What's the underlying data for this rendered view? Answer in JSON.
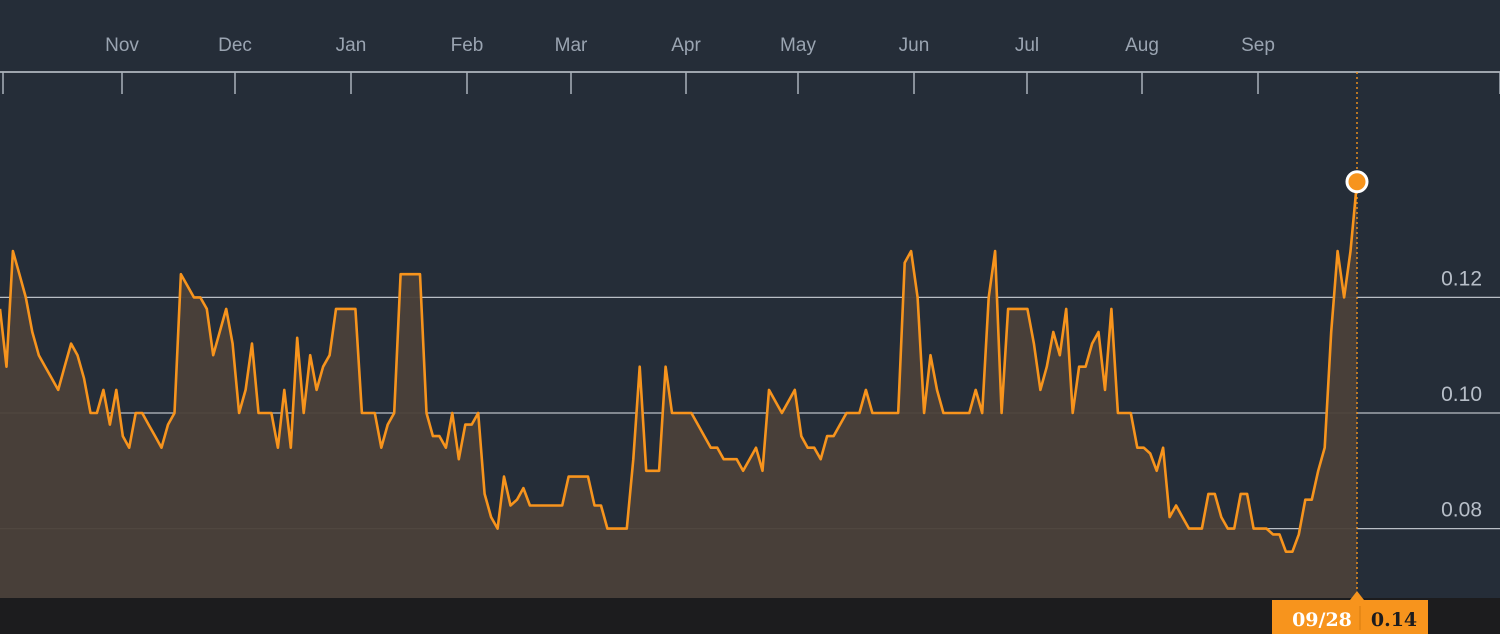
{
  "chart_data": {
    "type": "area",
    "title": "",
    "xlabel": "",
    "ylabel": "",
    "x_axis_position": "top",
    "y_axis_position": "right",
    "months": [
      "Nov",
      "Dec",
      "Jan",
      "Feb",
      "Mar",
      "Apr",
      "May",
      "Jun",
      "Jul",
      "Aug",
      "Sep"
    ],
    "y_ticks": [
      0.08,
      0.1,
      0.12
    ],
    "y_tick_labels": [
      "0.08",
      "0.10",
      "0.12"
    ],
    "ylim": [
      0.068,
      0.155
    ],
    "grid": true,
    "series": [
      {
        "values": [
          0.118,
          0.108,
          0.128,
          0.124,
          0.12,
          0.114,
          0.11,
          0.108,
          0.106,
          0.104,
          0.108,
          0.112,
          0.11,
          0.106,
          0.1,
          0.1,
          0.104,
          0.098,
          0.104,
          0.096,
          0.094,
          0.1,
          0.1,
          0.098,
          0.096,
          0.094,
          0.098,
          0.1,
          0.124,
          0.122,
          0.12,
          0.12,
          0.118,
          0.11,
          0.114,
          0.118,
          0.112,
          0.1,
          0.104,
          0.112,
          0.1,
          0.1,
          0.1,
          0.094,
          0.104,
          0.094,
          0.113,
          0.1,
          0.11,
          0.104,
          0.108,
          0.11,
          0.118,
          0.118,
          0.118,
          0.118,
          0.1,
          0.1,
          0.1,
          0.094,
          0.098,
          0.1,
          0.124,
          0.124,
          0.124,
          0.124,
          0.1,
          0.096,
          0.096,
          0.094,
          0.1,
          0.092,
          0.098,
          0.098,
          0.1,
          0.086,
          0.082,
          0.08,
          0.089,
          0.084,
          0.085,
          0.087,
          0.084,
          0.084,
          0.084,
          0.084,
          0.084,
          0.084,
          0.089,
          0.089,
          0.089,
          0.089,
          0.084,
          0.084,
          0.08,
          0.08,
          0.08,
          0.08,
          0.092,
          0.108,
          0.09,
          0.09,
          0.09,
          0.108,
          0.1,
          0.1,
          0.1,
          0.1,
          0.098,
          0.096,
          0.094,
          0.094,
          0.092,
          0.092,
          0.092,
          0.09,
          0.092,
          0.094,
          0.09,
          0.104,
          0.102,
          0.1,
          0.102,
          0.104,
          0.096,
          0.094,
          0.094,
          0.092,
          0.096,
          0.096,
          0.098,
          0.1,
          0.1,
          0.1,
          0.104,
          0.1,
          0.1,
          0.1,
          0.1,
          0.1,
          0.126,
          0.128,
          0.12,
          0.1,
          0.11,
          0.104,
          0.1,
          0.1,
          0.1,
          0.1,
          0.1,
          0.104,
          0.1,
          0.12,
          0.128,
          0.1,
          0.118,
          0.118,
          0.118,
          0.118,
          0.112,
          0.104,
          0.108,
          0.114,
          0.11,
          0.118,
          0.1,
          0.108,
          0.108,
          0.112,
          0.114,
          0.104,
          0.118,
          0.1,
          0.1,
          0.1,
          0.094,
          0.094,
          0.093,
          0.09,
          0.094,
          0.082,
          0.084,
          0.082,
          0.08,
          0.08,
          0.08,
          0.086,
          0.086,
          0.082,
          0.08,
          0.08,
          0.086,
          0.086,
          0.08,
          0.08,
          0.08,
          0.079,
          0.079,
          0.076,
          0.076,
          0.079,
          0.085,
          0.085,
          0.09,
          0.094,
          0.114,
          0.128,
          0.12,
          0.128,
          0.14
        ]
      }
    ],
    "last_point": {
      "date": "09/28",
      "value": "0.14"
    },
    "colors": {
      "background": "#252d38",
      "line": "#f7941d",
      "area": "#4a4039",
      "grid": "#d3d8de",
      "axis_labels": "#9aa4b1",
      "bottom_bar": "#1c1c1e",
      "tag_background": "#f7941d",
      "tag_text": "#1c1c1e",
      "marker_fill": "#f7941d",
      "marker_stroke": "#ffffff"
    }
  }
}
